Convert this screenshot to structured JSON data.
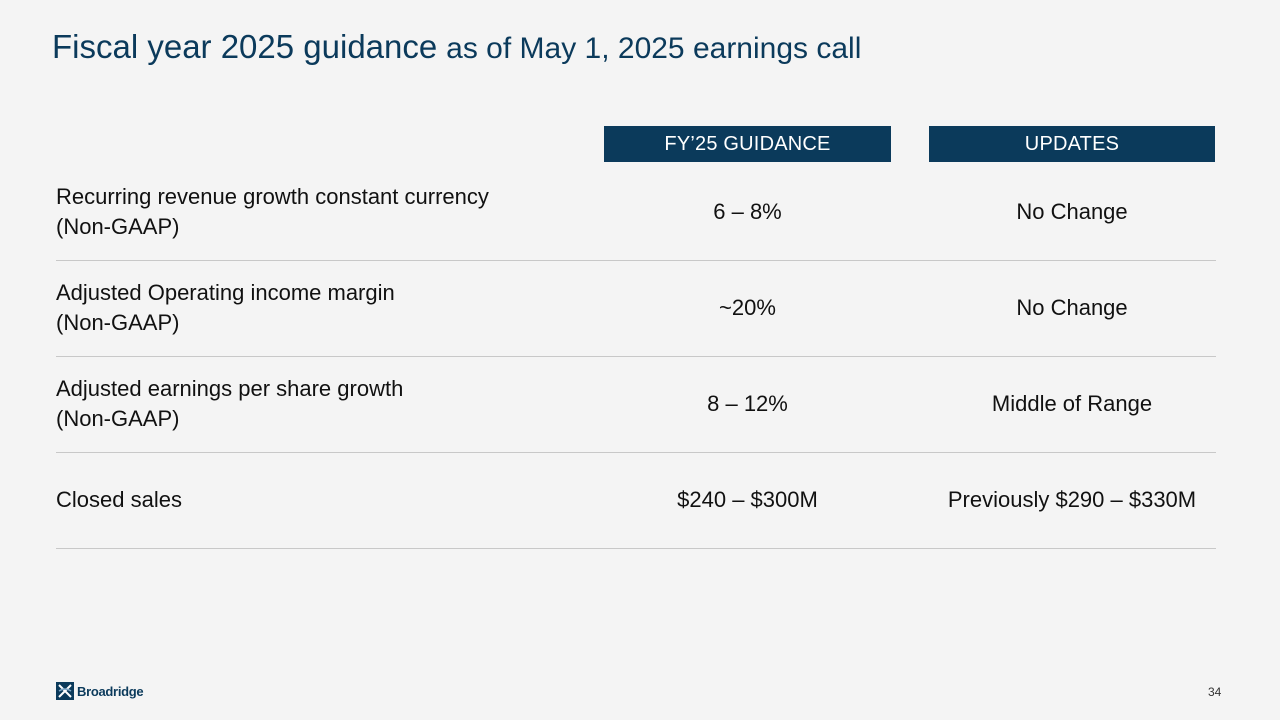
{
  "slide": {
    "title_main": "Fiscal year 2025 guidance",
    "title_sub": "as of May 1, 2025 earnings call",
    "page_number": "34"
  },
  "table": {
    "headers": {
      "guidance": "FY’25 GUIDANCE",
      "updates": "UPDATES"
    },
    "rows": [
      {
        "metric_line1": "Recurring revenue growth constant currency",
        "metric_line2": "(Non-GAAP)",
        "guidance": "6 – 8%",
        "update": "No Change"
      },
      {
        "metric_line1": "Adjusted Operating income margin",
        "metric_line2": "(Non-GAAP)",
        "guidance": "~20%",
        "update": "No Change"
      },
      {
        "metric_line1": "Adjusted earnings per share growth",
        "metric_line2": "(Non-GAAP)",
        "guidance": "8 – 12%",
        "update": "Middle of Range"
      },
      {
        "metric_line1": "Closed sales",
        "metric_line2": "",
        "guidance": "$240 – $300M",
        "update": "Previously $290 – $330M"
      }
    ]
  },
  "footer": {
    "logo_text": "Broadridge",
    "logo_icon": "broadridge-logo-mark"
  },
  "colors": {
    "brand_navy": "#0b3a5b",
    "background": "#f4f4f4",
    "divider": "#c8c8c8"
  }
}
